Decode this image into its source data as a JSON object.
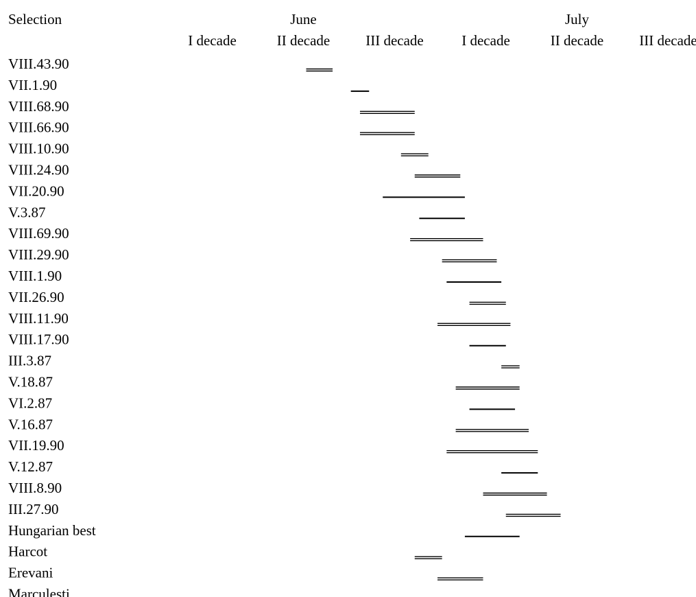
{
  "chart_data": {
    "type": "gantt",
    "row_header": "Selection",
    "months": [
      {
        "label": "June"
      },
      {
        "label": "July"
      }
    ],
    "periods": [
      "I decade",
      "II decade",
      "III decade",
      "I decade",
      "II decade",
      "III decade"
    ],
    "rows": [
      {
        "label": "VIII.43.90",
        "start": 1.53,
        "end": 1.82,
        "style": "double"
      },
      {
        "label": "VII.1.90",
        "start": 2.02,
        "end": 2.22,
        "style": "single"
      },
      {
        "label": "VIII.68.90",
        "start": 2.12,
        "end": 2.72,
        "style": "double"
      },
      {
        "label": "VIII.66.90",
        "start": 2.12,
        "end": 2.72,
        "style": "double"
      },
      {
        "label": "VIII.10.90",
        "start": 2.57,
        "end": 2.87,
        "style": "double"
      },
      {
        "label": "VIII.24.90",
        "start": 2.72,
        "end": 3.22,
        "style": "double"
      },
      {
        "label": "VII.20.90",
        "start": 2.37,
        "end": 3.27,
        "style": "single"
      },
      {
        "label": "V.3.87",
        "start": 2.77,
        "end": 3.27,
        "style": "single"
      },
      {
        "label": "VIII.69.90",
        "start": 2.67,
        "end": 3.47,
        "style": "double"
      },
      {
        "label": "VIII.29.90",
        "start": 3.02,
        "end": 3.62,
        "style": "double"
      },
      {
        "label": "VIII.1.90",
        "start": 3.07,
        "end": 3.67,
        "style": "single"
      },
      {
        "label": "VII.26.90",
        "start": 3.32,
        "end": 3.72,
        "style": "double"
      },
      {
        "label": "VIII.11.90",
        "start": 2.97,
        "end": 3.77,
        "style": "double"
      },
      {
        "label": "VIII.17.90",
        "start": 3.32,
        "end": 3.72,
        "style": "single"
      },
      {
        "label": "III.3.87",
        "start": 3.67,
        "end": 3.87,
        "style": "double"
      },
      {
        "label": "V.18.87",
        "start": 3.17,
        "end": 3.87,
        "style": "double"
      },
      {
        "label": "VI.2.87",
        "start": 3.32,
        "end": 3.82,
        "style": "single"
      },
      {
        "label": "V.16.87",
        "start": 3.17,
        "end": 3.97,
        "style": "double"
      },
      {
        "label": "VII.19.90",
        "start": 3.07,
        "end": 4.07,
        "style": "double"
      },
      {
        "label": "V.12.87",
        "start": 3.67,
        "end": 4.07,
        "style": "single"
      },
      {
        "label": "VIII.8.90",
        "start": 3.47,
        "end": 4.17,
        "style": "double"
      },
      {
        "label": "III.27.90",
        "start": 3.72,
        "end": 4.32,
        "style": "double"
      },
      {
        "label": "Hungarian best",
        "start": 3.27,
        "end": 3.87,
        "style": "single"
      },
      {
        "label": "Harcot",
        "start": 2.72,
        "end": 3.02,
        "style": "double"
      },
      {
        "label": "Erevani",
        "start": 2.97,
        "end": 3.47,
        "style": "double"
      },
      {
        "label": "Marculesti",
        "start": null,
        "end": null,
        "style": "none"
      }
    ]
  }
}
